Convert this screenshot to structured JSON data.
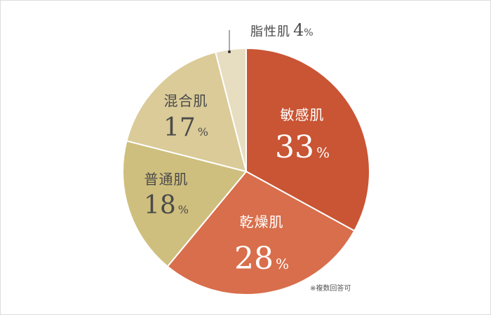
{
  "chart_data": {
    "type": "pie",
    "slices": [
      {
        "label": "敏感肌",
        "value": 33,
        "color": "#c95534",
        "text_color": "#ffffff"
      },
      {
        "label": "乾燥肌",
        "value": 28,
        "color": "#d86e4b",
        "text_color": "#ffffff"
      },
      {
        "label": "普通肌",
        "value": 18,
        "color": "#cfbf7e",
        "text_color": "#4a4a4a"
      },
      {
        "label": "混合肌",
        "value": 17,
        "color": "#dacb98",
        "text_color": "#4a4a4a"
      },
      {
        "label": "脂性肌",
        "value": 4,
        "color": "#e7ddc0",
        "text_color": "#4a4a4a"
      }
    ],
    "unit": "%",
    "note": "※複数回答可"
  }
}
